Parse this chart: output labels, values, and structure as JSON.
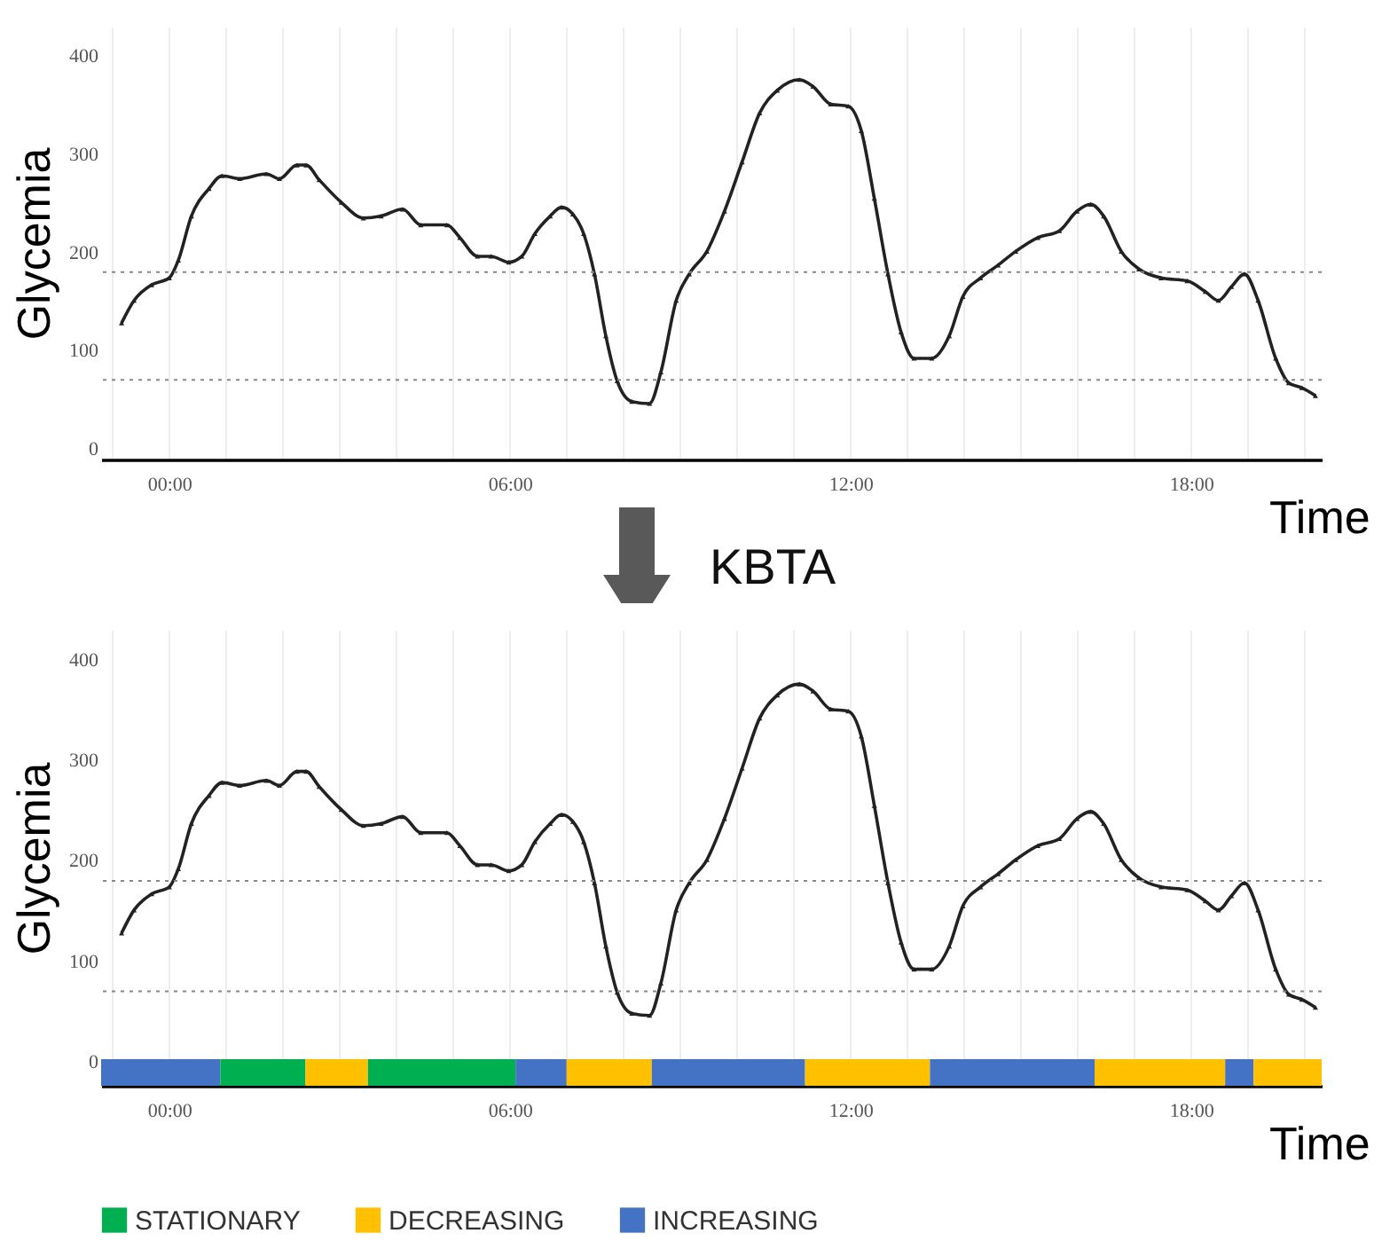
{
  "chart_data": [
    {
      "type": "line",
      "xlabel": "Time",
      "ylabel": "Glycemia",
      "xlim": [
        -1.2,
        20.3
      ],
      "ylim": [
        -11,
        430
      ],
      "xticks": [
        {
          "value": -1,
          "label": null
        },
        {
          "value": 0,
          "label": "00:00"
        },
        {
          "value": 1,
          "label": null
        },
        {
          "value": 2,
          "label": null
        },
        {
          "value": 3,
          "label": null
        },
        {
          "value": 4,
          "label": null
        },
        {
          "value": 5,
          "label": null
        },
        {
          "value": 6,
          "label": "06:00"
        },
        {
          "value": 7,
          "label": null
        },
        {
          "value": 8,
          "label": null
        },
        {
          "value": 9,
          "label": null
        },
        {
          "value": 10,
          "label": null
        },
        {
          "value": 11,
          "label": null
        },
        {
          "value": 12,
          "label": "12:00"
        },
        {
          "value": 13,
          "label": null
        },
        {
          "value": 14,
          "label": null
        },
        {
          "value": 15,
          "label": null
        },
        {
          "value": 16,
          "label": null
        },
        {
          "value": 17,
          "label": null
        },
        {
          "value": 18,
          "label": "18:00"
        },
        {
          "value": 19,
          "label": null
        },
        {
          "value": 20,
          "label": null
        }
      ],
      "yticks": [
        0,
        100,
        200,
        300,
        400
      ],
      "grid": "x",
      "marker": "triangle",
      "line_style": "solid",
      "ref_lines": [
        {
          "axis": "y",
          "value": 180,
          "color": "#888888",
          "line_style": "dotted"
        },
        {
          "axis": "y",
          "value": 70,
          "color": "#888888",
          "line_style": "dotted"
        }
      ],
      "x": [
        -0.84,
        -0.62,
        -0.31,
        0,
        0.16,
        0.39,
        0.7,
        0.93,
        1.24,
        1.71,
        1.94,
        2.25,
        2.41,
        2.64,
        3.03,
        3.42,
        3.73,
        4.11,
        4.43,
        4.89,
        5.12,
        5.43,
        5.67,
        5.98,
        6.21,
        6.44,
        6.71,
        6.91,
        7.11,
        7.3,
        7.49,
        7.69,
        7.89,
        8.15,
        8.46,
        8.66,
        8.93,
        9.16,
        9.47,
        9.78,
        10.09,
        10.4,
        10.71,
        11.1,
        11.34,
        11.65,
        11.96,
        12.19,
        12.42,
        12.66,
        12.89,
        13.12,
        13.43,
        13.74,
        13.98,
        14.29,
        14.6,
        14.91,
        15.3,
        15.68,
        15.99,
        16.23,
        16.46,
        16.77,
        17.08,
        17.47,
        17.93,
        18.25,
        18.48,
        18.71,
        18.94,
        19.18,
        19.49,
        19.72,
        19.95,
        20.19
      ],
      "series": [
        {
          "color": "#222222",
          "values": [
            128,
            151,
            167,
            174,
            192,
            237,
            265,
            278,
            275,
            280,
            275,
            289,
            289,
            274,
            251,
            235,
            237,
            244,
            228,
            228,
            215,
            196,
            196,
            190,
            196,
            219,
            237,
            246,
            239,
            219,
            178,
            115,
            69,
            48,
            46,
            78,
            151,
            178,
            201,
            242,
            292,
            342,
            365,
            376,
            369,
            351,
            349,
            324,
            255,
            178,
            119,
            92,
            92,
            115,
            155,
            174,
            187,
            201,
            215,
            222,
            242,
            249,
            237,
            201,
            183,
            174,
            171,
            160,
            151,
            165,
            178,
            151,
            92,
            67,
            62,
            54
          ]
        }
      ]
    },
    {
      "type": "line",
      "xlabel": "Time",
      "ylabel": "Glycemia",
      "annotations": [
        "KBTA"
      ],
      "legend": "bottom",
      "xlim": [
        -1.2,
        20.3
      ],
      "ylim": [
        -24,
        430
      ],
      "xticks": [
        {
          "value": -1,
          "label": null
        },
        {
          "value": 0,
          "label": "00:00"
        },
        {
          "value": 1,
          "label": null
        },
        {
          "value": 2,
          "label": null
        },
        {
          "value": 3,
          "label": null
        },
        {
          "value": 4,
          "label": null
        },
        {
          "value": 5,
          "label": null
        },
        {
          "value": 6,
          "label": "06:00"
        },
        {
          "value": 7,
          "label": null
        },
        {
          "value": 8,
          "label": null
        },
        {
          "value": 9,
          "label": null
        },
        {
          "value": 10,
          "label": null
        },
        {
          "value": 11,
          "label": null
        },
        {
          "value": 12,
          "label": "12:00"
        },
        {
          "value": 13,
          "label": null
        },
        {
          "value": 14,
          "label": null
        },
        {
          "value": 15,
          "label": null
        },
        {
          "value": 16,
          "label": null
        },
        {
          "value": 17,
          "label": null
        },
        {
          "value": 18,
          "label": "18:00"
        },
        {
          "value": 19,
          "label": null
        },
        {
          "value": 20,
          "label": null
        }
      ],
      "yticks": [
        0,
        100,
        200,
        300,
        400
      ],
      "grid": "x",
      "marker": "triangle",
      "line_style": "solid",
      "ref_lines": [
        {
          "axis": "y",
          "value": 180,
          "color": "#888888",
          "line_style": "dotted"
        },
        {
          "axis": "y",
          "value": 70,
          "color": "#888888",
          "line_style": "dotted"
        }
      ],
      "bands": [
        {
          "axis": "x",
          "from": -1.2,
          "to": 0.9,
          "color": "#4472c4"
        },
        {
          "axis": "x",
          "from": 0.9,
          "to": 2.4,
          "label": "STATIONARY",
          "color": "#00b050"
        },
        {
          "axis": "x",
          "from": 2.4,
          "to": 3.5,
          "label": "DECREASING",
          "color": "#ffc000"
        },
        {
          "axis": "x",
          "from": 3.5,
          "to": 6.1,
          "color": "#00b050"
        },
        {
          "axis": "x",
          "from": 6.1,
          "to": 7.0,
          "label": "INCREASING",
          "color": "#4472c4"
        },
        {
          "axis": "x",
          "from": 7.0,
          "to": 8.5,
          "color": "#ffc000"
        },
        {
          "axis": "x",
          "from": 8.5,
          "to": 11.2,
          "color": "#4472c4"
        },
        {
          "axis": "x",
          "from": 11.2,
          "to": 13.4,
          "color": "#ffc000"
        },
        {
          "axis": "x",
          "from": 13.4,
          "to": 16.3,
          "color": "#4472c4"
        },
        {
          "axis": "x",
          "from": 16.3,
          "to": 18.6,
          "color": "#ffc000"
        },
        {
          "axis": "x",
          "from": 18.6,
          "to": 19.1,
          "color": "#4472c4"
        },
        {
          "axis": "x",
          "from": 19.1,
          "to": 20.3,
          "color": "#ffc000"
        }
      ],
      "x": [
        -0.84,
        -0.62,
        -0.31,
        0,
        0.16,
        0.39,
        0.7,
        0.93,
        1.24,
        1.71,
        1.94,
        2.25,
        2.41,
        2.64,
        3.03,
        3.42,
        3.73,
        4.11,
        4.43,
        4.89,
        5.12,
        5.43,
        5.67,
        5.98,
        6.21,
        6.44,
        6.71,
        6.91,
        7.11,
        7.3,
        7.49,
        7.69,
        7.89,
        8.15,
        8.46,
        8.66,
        8.93,
        9.16,
        9.47,
        9.78,
        10.09,
        10.4,
        10.71,
        11.1,
        11.34,
        11.65,
        11.96,
        12.19,
        12.42,
        12.66,
        12.89,
        13.12,
        13.43,
        13.74,
        13.98,
        14.29,
        14.6,
        14.91,
        15.3,
        15.68,
        15.99,
        16.23,
        16.46,
        16.77,
        17.08,
        17.47,
        17.93,
        18.25,
        18.48,
        18.71,
        18.94,
        19.18,
        19.49,
        19.72,
        19.95,
        20.19
      ],
      "series": [
        {
          "color": "#222222",
          "values": [
            128,
            151,
            167,
            174,
            192,
            237,
            265,
            278,
            275,
            280,
            275,
            289,
            289,
            274,
            251,
            235,
            237,
            244,
            228,
            228,
            215,
            196,
            196,
            190,
            196,
            219,
            237,
            246,
            239,
            219,
            178,
            115,
            69,
            48,
            46,
            78,
            151,
            178,
            201,
            242,
            292,
            342,
            365,
            376,
            369,
            351,
            349,
            324,
            255,
            178,
            119,
            92,
            92,
            115,
            155,
            174,
            187,
            201,
            215,
            222,
            242,
            249,
            237,
            201,
            183,
            174,
            171,
            160,
            151,
            165,
            178,
            151,
            92,
            67,
            62,
            54
          ]
        }
      ]
    }
  ]
}
